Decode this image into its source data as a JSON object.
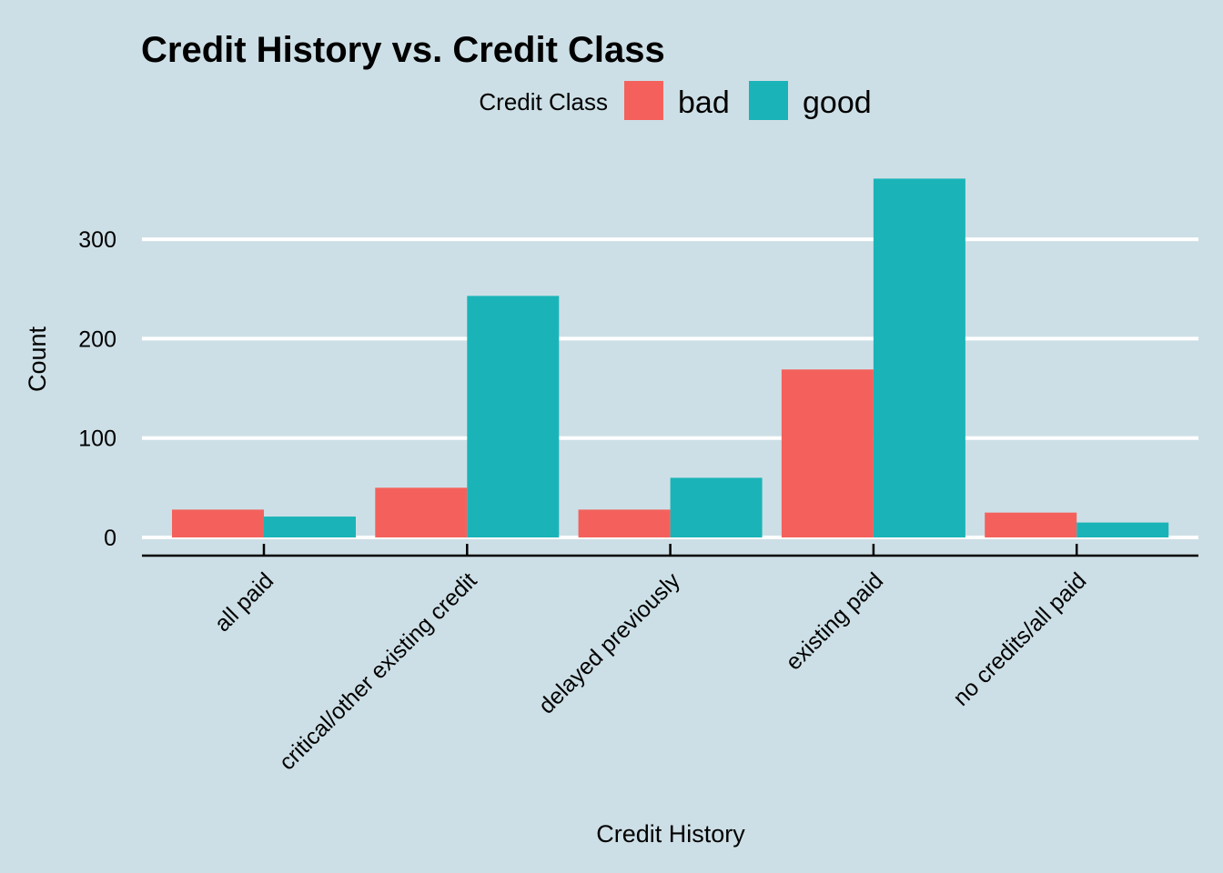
{
  "chart_data": {
    "type": "bar",
    "title": "Credit History vs. Credit Class",
    "xlabel": "Credit History",
    "ylabel": "Count",
    "categories": [
      "all paid",
      "critical/other existing credit",
      "delayed previously",
      "existing paid",
      "no credits/all paid"
    ],
    "series": [
      {
        "name": "bad",
        "color": "#f4615c",
        "values": [
          28,
          50,
          28,
          169,
          25
        ]
      },
      {
        "name": "good",
        "color": "#1ab4b8",
        "values": [
          21,
          243,
          60,
          361,
          15
        ]
      }
    ],
    "legend": {
      "title": "Credit Class",
      "position": "top"
    },
    "y_ticks": [
      0,
      100,
      200,
      300
    ],
    "ylim": [
      0,
      361
    ],
    "grid": "horizontal-major"
  }
}
